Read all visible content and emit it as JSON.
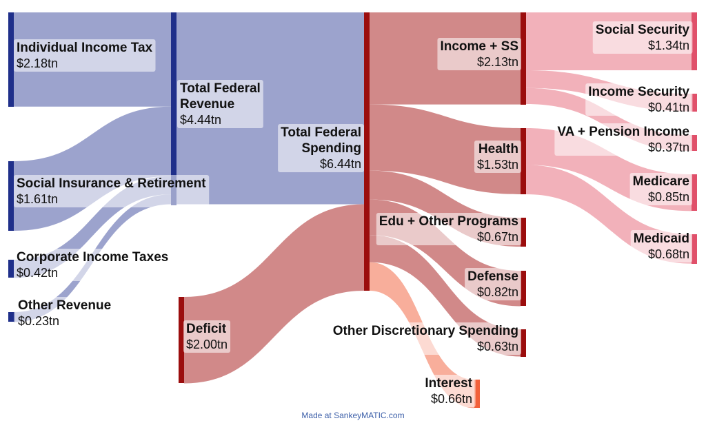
{
  "nodes": [
    {
      "id": "individual_income_tax",
      "name": "Individual Income Tax",
      "value": "$2.18tn",
      "color": "#1f2f8a"
    },
    {
      "id": "social_insurance",
      "name": "Social Insurance & Retirement",
      "value": "$1.61tn",
      "color": "#1f2f8a"
    },
    {
      "id": "corporate_income_taxes",
      "name": "Corporate Income Taxes",
      "value": "$0.42tn",
      "color": "#1f2f8a"
    },
    {
      "id": "other_revenue",
      "name": "Other Revenue",
      "value": "$0.23tn",
      "color": "#1f2f8a"
    },
    {
      "id": "total_federal_revenue",
      "name_lines": [
        "Total Federal",
        "Revenue"
      ],
      "value": "$4.44tn",
      "color": "#1f2f8a"
    },
    {
      "id": "deficit",
      "name": "Deficit",
      "value": "$2.00tn",
      "color": "#9b0d0d"
    },
    {
      "id": "total_federal_spending",
      "name_lines": [
        "Total Federal",
        "Spending"
      ],
      "value": "$6.44tn",
      "color": "#9b0d0d"
    },
    {
      "id": "income_ss",
      "name": "Income + SS",
      "value": "$2.13tn",
      "color": "#9b0d0d"
    },
    {
      "id": "health",
      "name": "Health",
      "value": "$1.53tn",
      "color": "#9b0d0d"
    },
    {
      "id": "edu_other",
      "name": "Edu + Other Programs",
      "value": "$0.67tn",
      "color": "#9b0d0d"
    },
    {
      "id": "defense",
      "name": "Defense",
      "value": "$0.82tn",
      "color": "#9b0d0d"
    },
    {
      "id": "other_discretionary",
      "name": "Other Discretionary Spending",
      "value": "$0.63tn",
      "color": "#9b0d0d"
    },
    {
      "id": "interest",
      "name": "Interest",
      "value": "$0.66tn",
      "color": "#f2603a"
    },
    {
      "id": "social_security",
      "name": "Social Security",
      "value": "$1.34tn",
      "color": "#e0506a"
    },
    {
      "id": "income_security",
      "name": "Income Security",
      "value": "$0.41tn",
      "color": "#e0506a"
    },
    {
      "id": "va_pension",
      "name": "VA + Pension Income",
      "value": "$0.37tn",
      "color": "#e0506a"
    },
    {
      "id": "medicare",
      "name": "Medicare",
      "value": "$0.85tn",
      "color": "#e0506a"
    },
    {
      "id": "medicaid",
      "name": "Medicaid",
      "value": "$0.68tn",
      "color": "#e0506a"
    }
  ],
  "flows": [
    {
      "from": "individual_income_tax",
      "to": "total_federal_revenue",
      "value": 2.18,
      "color": "#8b93c4"
    },
    {
      "from": "social_insurance",
      "to": "total_federal_revenue",
      "value": 1.61,
      "color": "#8b93c4"
    },
    {
      "from": "corporate_income_taxes",
      "to": "total_federal_revenue",
      "value": 0.42,
      "color": "#8b93c4"
    },
    {
      "from": "other_revenue",
      "to": "total_federal_revenue",
      "value": 0.23,
      "color": "#8b93c4"
    },
    {
      "from": "total_federal_revenue",
      "to": "total_federal_spending",
      "value": 4.44,
      "color": "#8b93c4"
    },
    {
      "from": "deficit",
      "to": "total_federal_spending",
      "value": 2.0,
      "color": "#c97474"
    },
    {
      "from": "total_federal_spending",
      "to": "income_ss",
      "value": 2.13,
      "color": "#c97474"
    },
    {
      "from": "total_federal_spending",
      "to": "health",
      "value": 1.53,
      "color": "#c97474"
    },
    {
      "from": "total_federal_spending",
      "to": "edu_other",
      "value": 0.67,
      "color": "#c97474"
    },
    {
      "from": "total_federal_spending",
      "to": "defense",
      "value": 0.82,
      "color": "#c97474"
    },
    {
      "from": "total_federal_spending",
      "to": "other_discretionary",
      "value": 0.63,
      "color": "#c97474"
    },
    {
      "from": "total_federal_spending",
      "to": "interest",
      "value": 0.66,
      "color": "#f7a08a"
    },
    {
      "from": "income_ss",
      "to": "social_security",
      "value": 1.34,
      "color": "#f0a3ae"
    },
    {
      "from": "income_ss",
      "to": "income_security",
      "value": 0.41,
      "color": "#f0a3ae"
    },
    {
      "from": "income_ss",
      "to": "va_pension",
      "value": 0.37,
      "color": "#f0a3ae"
    },
    {
      "from": "health",
      "to": "medicare",
      "value": 0.85,
      "color": "#f0a3ae"
    },
    {
      "from": "health",
      "to": "medicaid",
      "value": 0.68,
      "color": "#f0a3ae"
    }
  ],
  "credit": "Made at SankeyMATIC.com"
}
